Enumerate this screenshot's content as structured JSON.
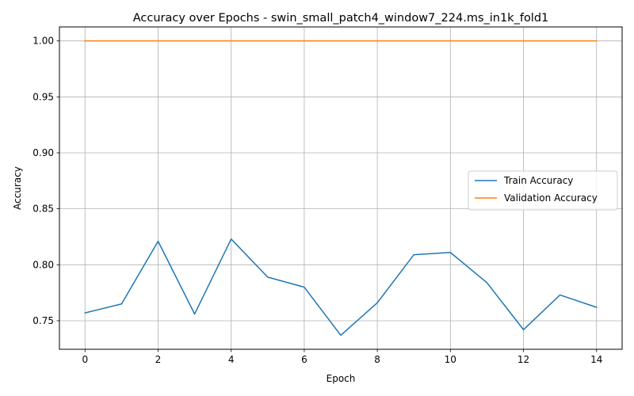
{
  "chart_data": {
    "type": "line",
    "title": "Accuracy over Epochs - swin_small_patch4_window7_224.ms_in1k_fold1",
    "xlabel": "Epoch",
    "ylabel": "Accuracy",
    "xlim": [
      -0.7,
      14.7
    ],
    "ylim": [
      0.7245,
      1.0125
    ],
    "xticks": [
      0,
      2,
      4,
      6,
      8,
      10,
      12,
      14
    ],
    "yticks": [
      0.75,
      0.8,
      0.85,
      0.9,
      0.95,
      1.0
    ],
    "ytick_labels": [
      "0.75",
      "0.80",
      "0.85",
      "0.90",
      "0.95",
      "1.00"
    ],
    "grid": true,
    "legend_position": "center-right",
    "x": [
      0,
      1,
      2,
      3,
      4,
      5,
      6,
      7,
      8,
      9,
      10,
      11,
      12,
      13,
      14
    ],
    "series": [
      {
        "name": "Train Accuracy",
        "color": "#1f77b4",
        "values": [
          0.757,
          0.765,
          0.821,
          0.756,
          0.823,
          0.789,
          0.78,
          0.737,
          0.766,
          0.809,
          0.811,
          0.784,
          0.742,
          0.773,
          0.762
        ]
      },
      {
        "name": "Validation Accuracy",
        "color": "#ff7f0e",
        "values": [
          1.0,
          1.0,
          1.0,
          1.0,
          1.0,
          1.0,
          1.0,
          1.0,
          1.0,
          1.0,
          1.0,
          1.0,
          1.0,
          1.0,
          1.0
        ]
      }
    ]
  }
}
